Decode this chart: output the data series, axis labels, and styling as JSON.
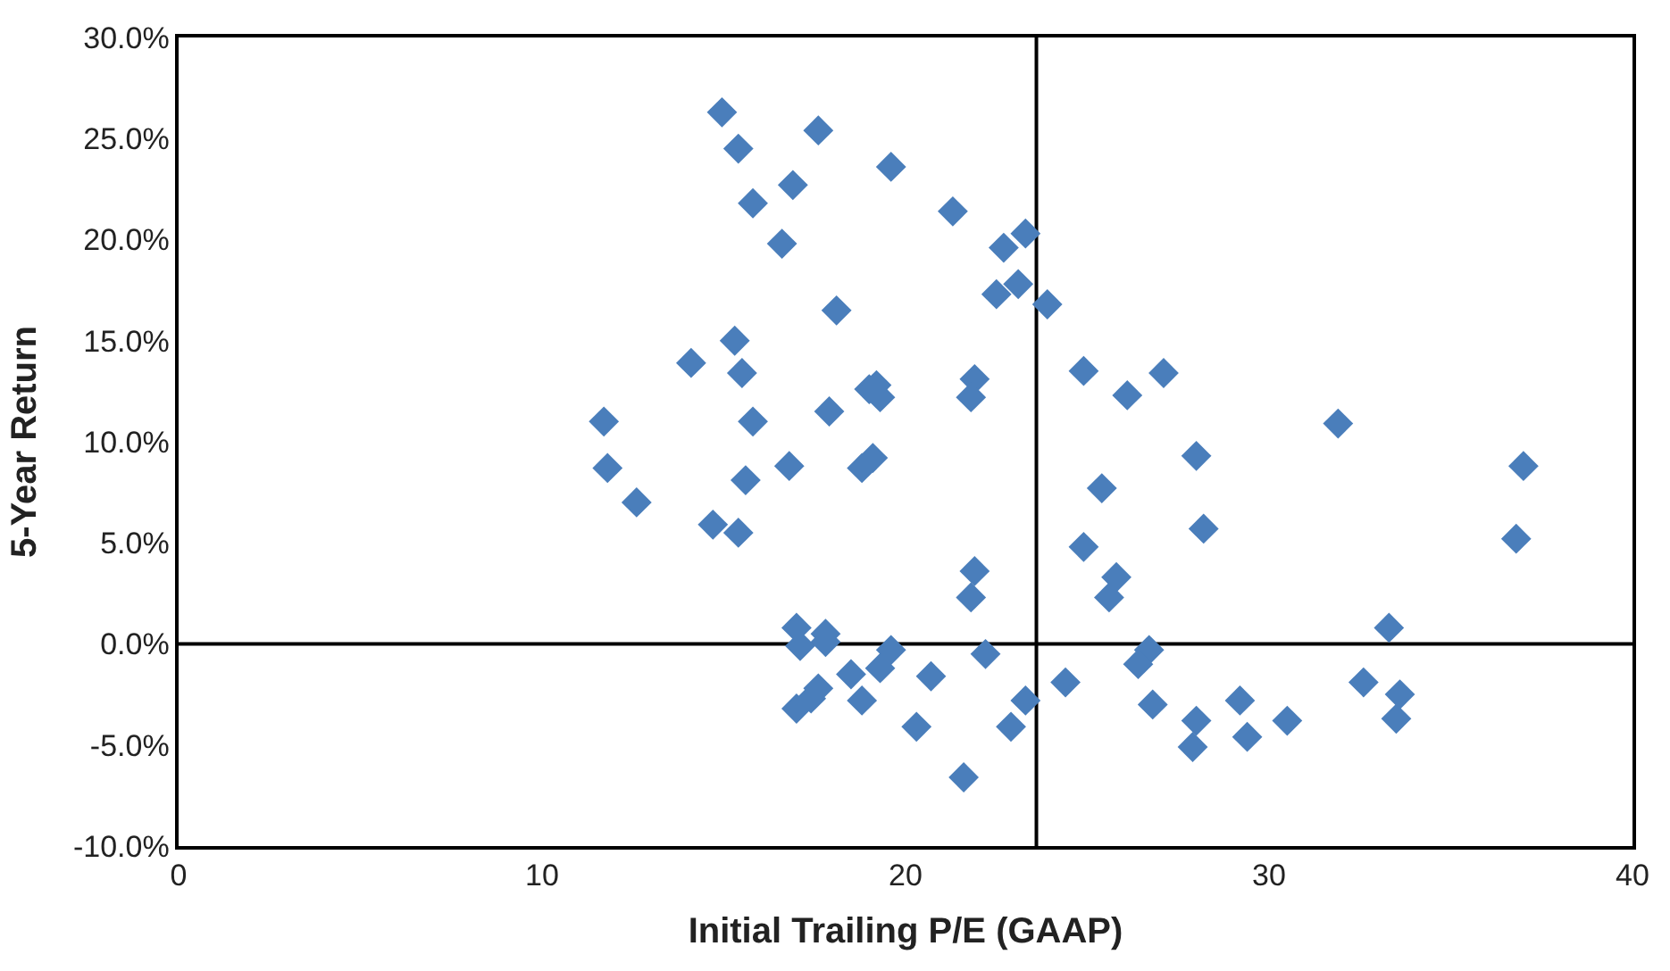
{
  "chart_data": {
    "type": "scatter",
    "xlabel": "Initial Trailing P/E (GAAP)",
    "ylabel": "5-Year Return",
    "xlim": [
      0,
      40
    ],
    "xticks": [
      0,
      10,
      20,
      30,
      40
    ],
    "ylim": [
      -10,
      30
    ],
    "yticks": [
      {
        "value": -10,
        "label": "-10.0%"
      },
      {
        "value": -5,
        "label": "-5.0%"
      },
      {
        "value": 0,
        "label": "0.0%"
      },
      {
        "value": 5,
        "label": "5.0%"
      },
      {
        "value": 10,
        "label": "10.0%"
      },
      {
        "value": 15,
        "label": "15.0%"
      },
      {
        "value": 20,
        "label": "20.0%"
      },
      {
        "value": 25,
        "label": "25.0%"
      },
      {
        "value": 30,
        "label": "30.0%"
      }
    ],
    "marker": "diamond",
    "grid": false,
    "ref_lines": [
      {
        "axis": "x",
        "value": 23.6,
        "color": "#000000"
      },
      {
        "axis": "y",
        "value": 0,
        "color": "#000000"
      }
    ],
    "series": [
      {
        "color": "#4a7ebb",
        "x": [
          14.95,
          15.4,
          17.6,
          19.6,
          15.8,
          16.9,
          16.6,
          21.3,
          18.1,
          22.7,
          23.3,
          22.5,
          23.1,
          23.9,
          15.3,
          14.1,
          15.5,
          21.9,
          21.8,
          19.0,
          19.2,
          19.3,
          17.9,
          15.8,
          11.7,
          11.8,
          12.6,
          16.8,
          15.6,
          18.8,
          19.1,
          14.7,
          15.4,
          24.9,
          27.1,
          26.1,
          31.9,
          28.0,
          25.4,
          28.2,
          24.9,
          37.0,
          36.8,
          21.9,
          21.8,
          25.8,
          25.6,
          33.3,
          17.0,
          17.1,
          17.8,
          17.8,
          19.6,
          19.3,
          22.2,
          26.7,
          26.4,
          20.7,
          18.5,
          17.6,
          17.4,
          17.0,
          18.8,
          24.4,
          23.3,
          22.9,
          20.3,
          21.6,
          26.8,
          28.0,
          27.9,
          29.2,
          29.4,
          30.5,
          32.6,
          33.6,
          33.5
        ],
        "values": [
          26.3,
          24.5,
          25.4,
          23.6,
          21.8,
          22.7,
          19.8,
          21.4,
          16.5,
          19.6,
          20.3,
          17.3,
          17.8,
          16.8,
          15.0,
          13.9,
          13.4,
          13.1,
          12.2,
          12.6,
          12.8,
          12.2,
          11.5,
          11.0,
          11.0,
          8.7,
          7.0,
          8.8,
          8.1,
          8.7,
          9.2,
          5.9,
          5.5,
          13.5,
          13.4,
          12.3,
          10.9,
          9.3,
          7.7,
          5.7,
          4.8,
          8.8,
          5.2,
          3.6,
          2.3,
          3.3,
          2.3,
          0.8,
          0.8,
          -0.1,
          0.5,
          0.1,
          -0.3,
          -1.2,
          -0.5,
          -0.3,
          -1.0,
          -1.6,
          -1.5,
          -2.2,
          -2.7,
          -3.2,
          -2.8,
          -1.9,
          -2.8,
          -4.1,
          -4.1,
          -6.6,
          -3.0,
          -3.8,
          -5.1,
          -2.8,
          -4.6,
          -3.8,
          -1.9,
          -2.5,
          -3.7
        ]
      }
    ]
  }
}
